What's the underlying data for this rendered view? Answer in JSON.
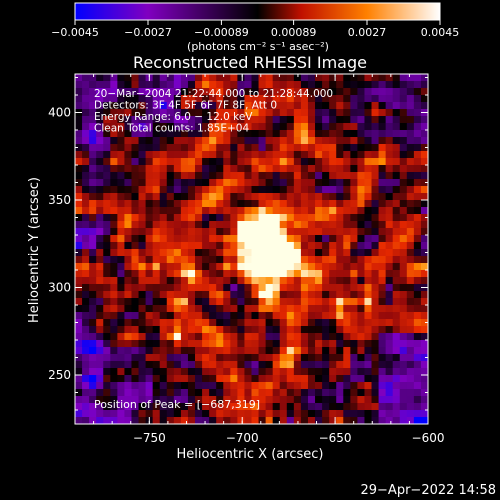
{
  "chart_data": {
    "type": "heatmap",
    "title": "Reconstructed RHESSI Image",
    "xlabel": "Heliocentric X (arcsec)",
    "ylabel": "Heliocentric Y (arcsec)",
    "xlim": [
      -790,
      -600
    ],
    "ylim": [
      222,
      422
    ],
    "xticks": [
      -750,
      -700,
      -650,
      -600
    ],
    "xtick_labels": [
      "−750",
      "−700",
      "−650",
      "−600"
    ],
    "yticks": [
      250,
      300,
      350,
      400
    ],
    "ytick_labels": [
      "250",
      "300",
      "350",
      "400"
    ],
    "colorbar": {
      "label": "(photons cm⁻² s⁻¹ asec⁻²)",
      "range": [
        -0.0045,
        0.0045
      ],
      "ticks": [
        -0.0045,
        -0.0027,
        -0.00089,
        0.00089,
        0.0027,
        0.0045
      ],
      "tick_labels": [
        "−0.0045",
        "−0.0027",
        "−0.00089",
        "0.00089",
        "0.0027",
        "0.0045"
      ],
      "colors": [
        "#0000ff",
        "#8000c0",
        "#000000",
        "#c01000",
        "#ff8000",
        "#ffffff"
      ]
    },
    "info_lines": [
      "20−Mar−2004 21:22:44.000 to 21:28:44.000",
      "Detectors: 3F 4F 5F 6F 7F 8F, Att 0",
      "Energy Range: 6.0 − 12.0 keV",
      "Clean     Total counts: 1.85E+04"
    ],
    "peak_text": "Position of Peak = [−687,319]",
    "peak": [
      -687,
      319
    ],
    "grid": false
  },
  "timestamp": "29−Apr−2022 14:58"
}
